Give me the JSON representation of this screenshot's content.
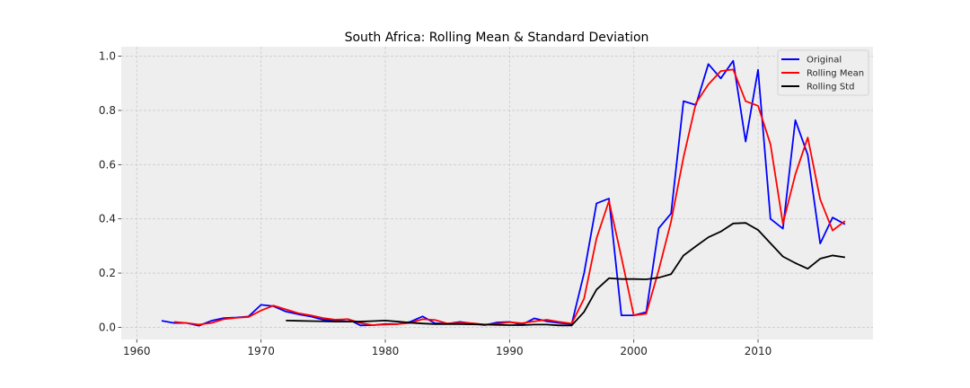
{
  "chart_data": {
    "type": "line",
    "title": "South Africa: Rolling Mean & Standard Deviation",
    "xlabel": "",
    "ylabel": "",
    "xlim": [
      1958.75,
      2019.25
    ],
    "ylim": [
      -0.045,
      1.035
    ],
    "xticks": [
      1960,
      1970,
      1980,
      1990,
      2000,
      2010
    ],
    "yticks": [
      0.0,
      0.2,
      0.4,
      0.6,
      0.8,
      1.0
    ],
    "grid": true,
    "legend_position": "top-right",
    "series": [
      {
        "name": "Original",
        "color": "#0000ff",
        "x": [
          1962,
          1963,
          1964,
          1965,
          1966,
          1967,
          1968,
          1969,
          1970,
          1971,
          1972,
          1973,
          1974,
          1975,
          1976,
          1977,
          1978,
          1979,
          1980,
          1981,
          1982,
          1983,
          1984,
          1985,
          1986,
          1987,
          1988,
          1989,
          1990,
          1991,
          1992,
          1993,
          1994,
          1995,
          1996,
          1997,
          1998,
          1999,
          2000,
          2001,
          2002,
          2003,
          2004,
          2005,
          2006,
          2007,
          2008,
          2009,
          2010,
          2011,
          2012,
          2013,
          2014,
          2015,
          2016,
          2017
        ],
        "y": [
          0.024,
          0.016,
          0.016,
          0.006,
          0.024,
          0.034,
          0.036,
          0.04,
          0.083,
          0.078,
          0.058,
          0.048,
          0.04,
          0.028,
          0.025,
          0.03,
          0.007,
          0.008,
          0.012,
          0.012,
          0.02,
          0.04,
          0.015,
          0.013,
          0.02,
          0.014,
          0.008,
          0.018,
          0.02,
          0.01,
          0.033,
          0.022,
          0.016,
          0.012,
          0.2,
          0.457,
          0.475,
          0.044,
          0.044,
          0.056,
          0.365,
          0.42,
          0.834,
          0.82,
          0.971,
          0.918,
          0.983,
          0.685,
          0.95,
          0.4,
          0.364,
          0.764,
          0.636,
          0.309,
          0.405,
          0.38
        ]
      },
      {
        "name": "Rolling Mean",
        "color": "#ff0000",
        "x": [
          1963,
          1964,
          1965,
          1966,
          1967,
          1968,
          1969,
          1970,
          1971,
          1972,
          1973,
          1974,
          1975,
          1976,
          1977,
          1978,
          1979,
          1980,
          1981,
          1982,
          1983,
          1984,
          1985,
          1986,
          1987,
          1988,
          1989,
          1990,
          1991,
          1992,
          1993,
          1994,
          1995,
          1996,
          1997,
          1998,
          1999,
          2000,
          2001,
          2002,
          2003,
          2004,
          2005,
          2006,
          2007,
          2008,
          2009,
          2010,
          2011,
          2012,
          2013,
          2014,
          2015,
          2016,
          2017
        ],
        "y": [
          0.02,
          0.016,
          0.01,
          0.016,
          0.03,
          0.035,
          0.038,
          0.062,
          0.08,
          0.066,
          0.052,
          0.044,
          0.034,
          0.028,
          0.03,
          0.016,
          0.008,
          0.01,
          0.012,
          0.016,
          0.03,
          0.027,
          0.014,
          0.017,
          0.015,
          0.01,
          0.013,
          0.019,
          0.015,
          0.022,
          0.028,
          0.02,
          0.014,
          0.106,
          0.328,
          0.466,
          0.259,
          0.044,
          0.05,
          0.21,
          0.39,
          0.627,
          0.827,
          0.896,
          0.945,
          0.951,
          0.834,
          0.817,
          0.675,
          0.382,
          0.564,
          0.7,
          0.472,
          0.357,
          0.392
        ]
      },
      {
        "name": "Rolling Std",
        "color": "#000000",
        "x": [
          1972,
          1973,
          1974,
          1975,
          1976,
          1977,
          1978,
          1979,
          1980,
          1981,
          1982,
          1983,
          1984,
          1985,
          1986,
          1987,
          1988,
          1989,
          1990,
          1991,
          1992,
          1993,
          1994,
          1995,
          1996,
          1997,
          1998,
          1999,
          2000,
          2001,
          2002,
          2003,
          2004,
          2005,
          2006,
          2007,
          2008,
          2009,
          2010,
          2011,
          2012,
          2013,
          2014,
          2015,
          2016,
          2017
        ],
        "y": [
          0.025,
          0.024,
          0.023,
          0.022,
          0.021,
          0.021,
          0.021,
          0.023,
          0.025,
          0.021,
          0.017,
          0.014,
          0.012,
          0.012,
          0.012,
          0.011,
          0.01,
          0.009,
          0.008,
          0.008,
          0.01,
          0.01,
          0.007,
          0.007,
          0.057,
          0.139,
          0.181,
          0.178,
          0.178,
          0.177,
          0.183,
          0.196,
          0.265,
          0.299,
          0.332,
          0.353,
          0.383,
          0.385,
          0.359,
          0.31,
          0.261,
          0.237,
          0.216,
          0.253,
          0.265,
          0.258
        ]
      }
    ]
  }
}
